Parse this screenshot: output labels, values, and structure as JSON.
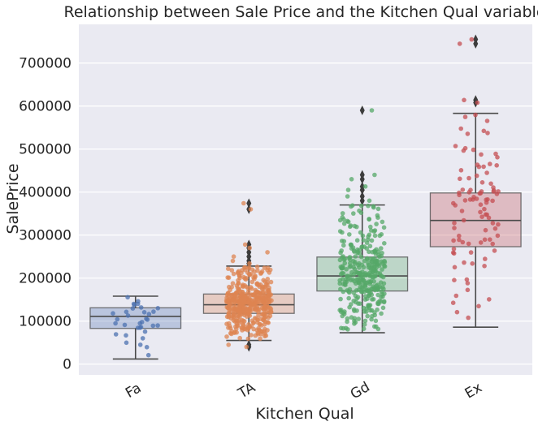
{
  "chart_data": {
    "type": "box",
    "title": "Relationship between Sale Price and the Kitchen Qual variable",
    "xlabel": "Kitchen Qual",
    "ylabel": "SalePrice",
    "ylim": [
      -25000,
      790000
    ],
    "yticks": [
      0,
      100000,
      200000,
      300000,
      400000,
      500000,
      600000,
      700000
    ],
    "grid": true,
    "categories": [
      "Fa",
      "TA",
      "Gd",
      "Ex"
    ],
    "colors": [
      "#4c72b0",
      "#dd8452",
      "#55a868",
      "#c44e52"
    ],
    "boxes": [
      {
        "category": "Fa",
        "whisker_low": 12000,
        "q1": 83000,
        "median": 111000,
        "q3": 131000,
        "whisker_high": 158000,
        "outliers": []
      },
      {
        "category": "TA",
        "whisker_low": 55000,
        "q1": 118000,
        "median": 138000,
        "q3": 163000,
        "whisker_high": 228000,
        "outliers": [
          40000,
          45000,
          234000,
          240000,
          250000,
          260000,
          270000,
          278000,
          360000,
          374000
        ]
      },
      {
        "category": "Gd",
        "whisker_low": 73000,
        "q1": 170000,
        "median": 205000,
        "q3": 249000,
        "whisker_high": 370000,
        "outliers": [
          380000,
          390000,
          405000,
          413000,
          430000,
          440000,
          590000
        ]
      },
      {
        "category": "Ex",
        "whisker_low": 86000,
        "q1": 273000,
        "median": 334000,
        "q3": 398000,
        "whisker_high": 583000,
        "outliers": [
          608000,
          614000,
          745000,
          755000
        ]
      }
    ]
  }
}
